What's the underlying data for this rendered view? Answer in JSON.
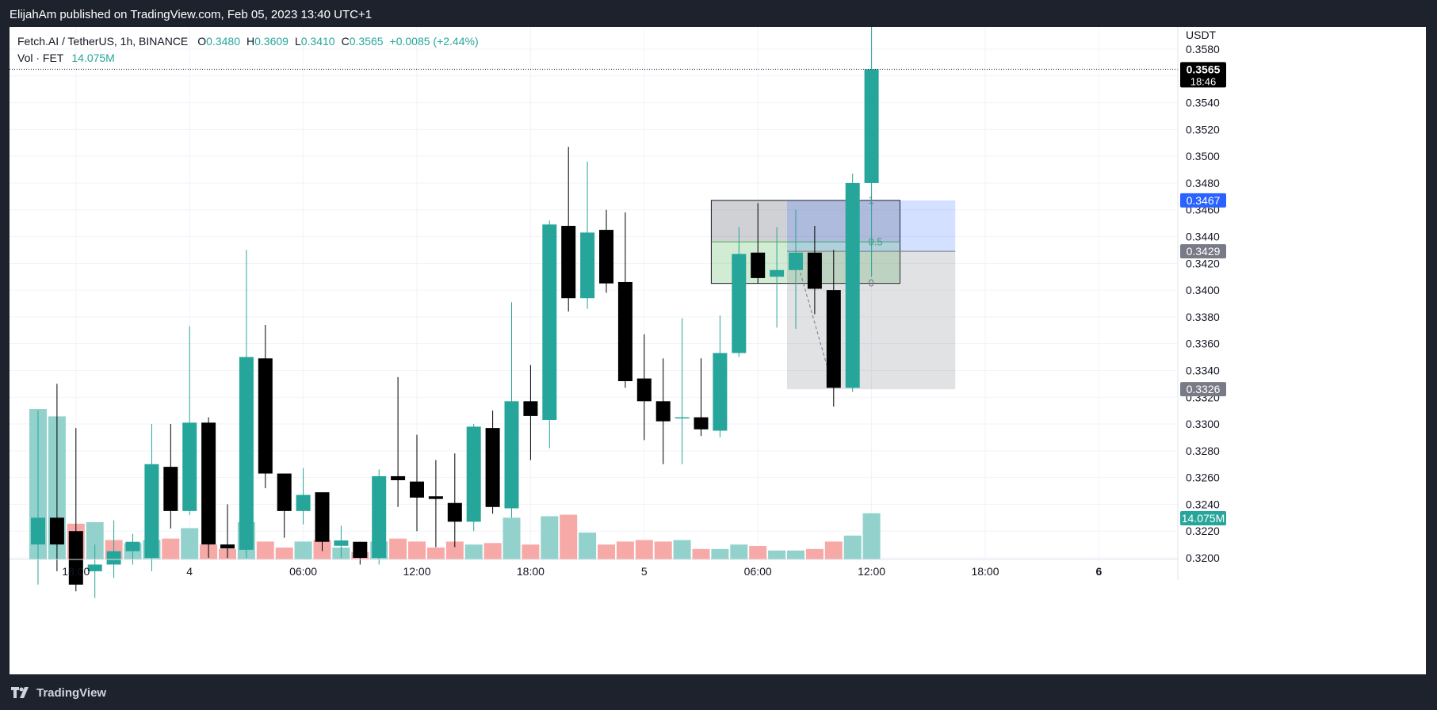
{
  "header": {
    "publish_line": "ElijahAm published on TradingView.com, Feb 05, 2023 13:40 UTC+1"
  },
  "legend": {
    "symbol": "Fetch.AI / TetherUS, 1h, BINANCE",
    "o_label": "O",
    "o_value": "0.3480",
    "h_label": "H",
    "h_value": "0.3609",
    "l_label": "L",
    "l_value": "0.3410",
    "c_label": "C",
    "c_value": "0.3565",
    "change": "+0.0085 (+2.44%)",
    "vol_label": "Vol · FET",
    "vol_value": "14.075M"
  },
  "footer": {
    "brand": "TradingView"
  },
  "colors": {
    "up": "#26a69a",
    "down": "#000000",
    "vol_up": "#93d2cc",
    "vol_down": "#f7a9a7",
    "badge_price": "#000000",
    "badge_blue": "#2962ff",
    "badge_grey": "#787b86",
    "badge_vol": "#26a69a"
  },
  "chart_data": {
    "type": "candlestick",
    "title": "Fetch.AI / TetherUS, 1h, BINANCE",
    "currency": "USDT",
    "ylim": [
      0.32,
      0.358
    ],
    "y_ticks": [
      "0.3200",
      "0.3220",
      "0.3240",
      "0.3260",
      "0.3280",
      "0.3300",
      "0.3320",
      "0.3340",
      "0.3360",
      "0.3380",
      "0.3400",
      "0.3420",
      "0.3440",
      "0.3460",
      "0.3480",
      "0.3500",
      "0.3520",
      "0.3540",
      "0.3560",
      "0.3580"
    ],
    "x_ticks": [
      {
        "label": "18:00",
        "index": 2
      },
      {
        "label": "4",
        "index": 8
      },
      {
        "label": "06:00",
        "index": 14
      },
      {
        "label": "12:00",
        "index": 20
      },
      {
        "label": "18:00",
        "index": 26
      },
      {
        "label": "5",
        "index": 32
      },
      {
        "label": "06:00",
        "index": 38
      },
      {
        "label": "12:00",
        "index": 44
      },
      {
        "label": "18:00",
        "index": 50
      },
      {
        "label": "6",
        "index": 56
      }
    ],
    "candles": [
      {
        "o": 0.321,
        "h": 0.331,
        "l": 0.318,
        "c": 0.323
      },
      {
        "o": 0.323,
        "h": 0.333,
        "l": 0.319,
        "c": 0.321
      },
      {
        "o": 0.322,
        "h": 0.3297,
        "l": 0.3175,
        "c": 0.318
      },
      {
        "o": 0.319,
        "h": 0.321,
        "l": 0.317,
        "c": 0.3195
      },
      {
        "o": 0.3195,
        "h": 0.3228,
        "l": 0.3185,
        "c": 0.3205
      },
      {
        "o": 0.3205,
        "h": 0.3218,
        "l": 0.3195,
        "c": 0.3212
      },
      {
        "o": 0.32,
        "h": 0.33,
        "l": 0.319,
        "c": 0.327
      },
      {
        "o": 0.3268,
        "h": 0.33,
        "l": 0.3222,
        "c": 0.3235
      },
      {
        "o": 0.3235,
        "h": 0.3373,
        "l": 0.3232,
        "c": 0.3301
      },
      {
        "o": 0.3301,
        "h": 0.3305,
        "l": 0.32,
        "c": 0.321
      },
      {
        "o": 0.321,
        "h": 0.324,
        "l": 0.32,
        "c": 0.3207
      },
      {
        "o": 0.3206,
        "h": 0.343,
        "l": 0.32,
        "c": 0.335
      },
      {
        "o": 0.3349,
        "h": 0.3374,
        "l": 0.3252,
        "c": 0.3263
      },
      {
        "o": 0.3263,
        "h": 0.3263,
        "l": 0.3215,
        "c": 0.3235
      },
      {
        "o": 0.3235,
        "h": 0.3267,
        "l": 0.3225,
        "c": 0.3247
      },
      {
        "o": 0.3249,
        "h": 0.3249,
        "l": 0.3205,
        "c": 0.3212
      },
      {
        "o": 0.3209,
        "h": 0.3224,
        "l": 0.32,
        "c": 0.3213
      },
      {
        "o": 0.3212,
        "h": 0.3212,
        "l": 0.3195,
        "c": 0.32
      },
      {
        "o": 0.32,
        "h": 0.3266,
        "l": 0.3195,
        "c": 0.3261
      },
      {
        "o": 0.3261,
        "h": 0.3335,
        "l": 0.3238,
        "c": 0.3258
      },
      {
        "o": 0.3257,
        "h": 0.3292,
        "l": 0.322,
        "c": 0.3245
      },
      {
        "o": 0.3246,
        "h": 0.3273,
        "l": 0.3208,
        "c": 0.3244
      },
      {
        "o": 0.3241,
        "h": 0.3278,
        "l": 0.3208,
        "c": 0.3227
      },
      {
        "o": 0.3227,
        "h": 0.33,
        "l": 0.322,
        "c": 0.3298
      },
      {
        "o": 0.3297,
        "h": 0.331,
        "l": 0.3233,
        "c": 0.3238
      },
      {
        "o": 0.3237,
        "h": 0.3391,
        "l": 0.323,
        "c": 0.3317
      },
      {
        "o": 0.3317,
        "h": 0.3344,
        "l": 0.3273,
        "c": 0.3306
      },
      {
        "o": 0.3303,
        "h": 0.3452,
        "l": 0.3282,
        "c": 0.3449
      },
      {
        "o": 0.3448,
        "h": 0.3507,
        "l": 0.3384,
        "c": 0.3394
      },
      {
        "o": 0.3394,
        "h": 0.3496,
        "l": 0.3386,
        "c": 0.3443
      },
      {
        "o": 0.3445,
        "h": 0.346,
        "l": 0.3398,
        "c": 0.3405
      },
      {
        "o": 0.3406,
        "h": 0.3458,
        "l": 0.3327,
        "c": 0.3332
      },
      {
        "o": 0.3334,
        "h": 0.3367,
        "l": 0.3288,
        "c": 0.3317
      },
      {
        "o": 0.3317,
        "h": 0.3349,
        "l": 0.327,
        "c": 0.3302
      },
      {
        "o": 0.3305,
        "h": 0.3379,
        "l": 0.327,
        "c": 0.3305
      },
      {
        "o": 0.3305,
        "h": 0.3349,
        "l": 0.3291,
        "c": 0.3296
      },
      {
        "o": 0.3295,
        "h": 0.3381,
        "l": 0.329,
        "c": 0.3353
      },
      {
        "o": 0.3353,
        "h": 0.3447,
        "l": 0.335,
        "c": 0.3427
      },
      {
        "o": 0.3428,
        "h": 0.3465,
        "l": 0.3405,
        "c": 0.3409
      },
      {
        "o": 0.341,
        "h": 0.3447,
        "l": 0.3372,
        "c": 0.3415
      },
      {
        "o": 0.3415,
        "h": 0.346,
        "l": 0.3371,
        "c": 0.3428
      },
      {
        "o": 0.3428,
        "h": 0.3448,
        "l": 0.3382,
        "c": 0.3401
      },
      {
        "o": 0.34,
        "h": 0.343,
        "l": 0.3313,
        "c": 0.3327
      },
      {
        "o": 0.3327,
        "h": 0.3487,
        "l": 0.3324,
        "c": 0.348
      },
      {
        "o": 0.348,
        "h": 0.3609,
        "l": 0.341,
        "c": 0.3565
      }
    ],
    "volumes": [
      {
        "v": 10.1,
        "up": true
      },
      {
        "v": 9.6,
        "up": true
      },
      {
        "v": 2.4,
        "up": false
      },
      {
        "v": 2.5,
        "up": true
      },
      {
        "v": 1.3,
        "up": false
      },
      {
        "v": 1.1,
        "up": true
      },
      {
        "v": 1.3,
        "up": true
      },
      {
        "v": 1.4,
        "up": false
      },
      {
        "v": 2.1,
        "up": true
      },
      {
        "v": 1.0,
        "up": false
      },
      {
        "v": 0.7,
        "up": false
      },
      {
        "v": 2.5,
        "up": true
      },
      {
        "v": 1.2,
        "up": false
      },
      {
        "v": 0.8,
        "up": false
      },
      {
        "v": 1.2,
        "up": true
      },
      {
        "v": 1.3,
        "up": false
      },
      {
        "v": 0.8,
        "up": true
      },
      {
        "v": 0.5,
        "up": false
      },
      {
        "v": 1.2,
        "up": true
      },
      {
        "v": 1.4,
        "up": false
      },
      {
        "v": 1.2,
        "up": false
      },
      {
        "v": 0.8,
        "up": false
      },
      {
        "v": 1.2,
        "up": false
      },
      {
        "v": 1.0,
        "up": true
      },
      {
        "v": 1.1,
        "up": false
      },
      {
        "v": 2.8,
        "up": true
      },
      {
        "v": 1.0,
        "up": false
      },
      {
        "v": 2.9,
        "up": true
      },
      {
        "v": 3.0,
        "up": false
      },
      {
        "v": 1.8,
        "up": true
      },
      {
        "v": 1.0,
        "up": false
      },
      {
        "v": 1.2,
        "up": false
      },
      {
        "v": 1.3,
        "up": false
      },
      {
        "v": 1.2,
        "up": false
      },
      {
        "v": 1.3,
        "up": true
      },
      {
        "v": 0.7,
        "up": false
      },
      {
        "v": 0.7,
        "up": true
      },
      {
        "v": 1.0,
        "up": true
      },
      {
        "v": 0.9,
        "up": false
      },
      {
        "v": 0.6,
        "up": true
      },
      {
        "v": 0.6,
        "up": true
      },
      {
        "v": 0.7,
        "up": false
      },
      {
        "v": 1.2,
        "up": false
      },
      {
        "v": 1.6,
        "up": true
      },
      {
        "v": 3.1,
        "up": true
      }
    ],
    "fib_levels": [
      "1",
      "0.5",
      "0"
    ],
    "price_badges": [
      {
        "value": "0.3565",
        "sub": "18:46",
        "kind": "price",
        "price": 0.3565
      },
      {
        "value": "0.3467",
        "kind": "blue",
        "price": 0.3467
      },
      {
        "value": "0.3429",
        "kind": "grey",
        "price": 0.3429
      },
      {
        "value": "0.3326",
        "kind": "grey",
        "price": 0.3326
      },
      {
        "value": "14.075M",
        "kind": "vol",
        "price": 0.323
      }
    ],
    "fib_range": {
      "high": 0.3467,
      "low": 0.3405,
      "mid": 0.3436,
      "start_index": 36,
      "end_index": 45
    },
    "position_box": {
      "entry": 0.3429,
      "target": 0.3467,
      "stop": 0.3326,
      "start_index": 40,
      "end_index": 48
    }
  }
}
